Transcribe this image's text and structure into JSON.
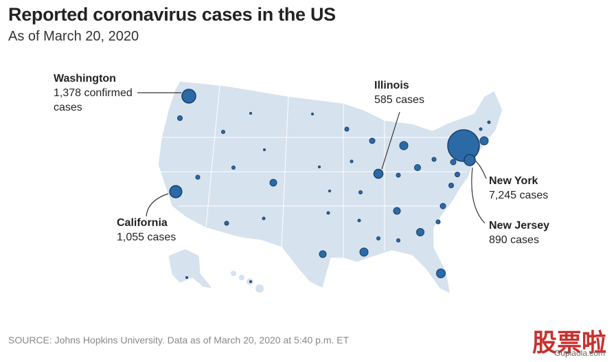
{
  "title": "Reported coronavirus cases in the US",
  "subtitle": "As of March 20, 2020",
  "source": "SOURCE: Johns Hopkins University. Data as of March 20, 2020 at 5:40 p.m. ET",
  "watermark": {
    "brand": "股票啦",
    "url": "Gupiaola.com"
  },
  "annotations": [
    {
      "name": "Washington",
      "value": 1378,
      "value_label": "1,378 confirmed cases"
    },
    {
      "name": "California",
      "value": 1055,
      "value_label": "1,055 cases"
    },
    {
      "name": "Illinois",
      "value": 585,
      "value_label": "585 cases"
    },
    {
      "name": "New York",
      "value": 7245,
      "value_label": "7,245 cases"
    },
    {
      "name": "New Jersey",
      "value": 890,
      "value_label": "890 cases"
    }
  ]
}
